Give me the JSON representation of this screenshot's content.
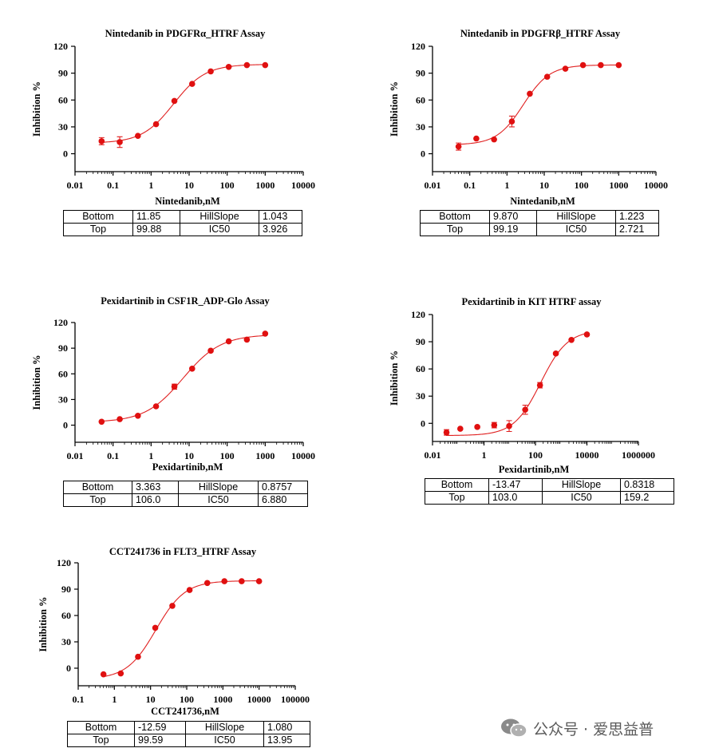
{
  "watermark": {
    "text": "公众号 · 爱思益普",
    "icon": "wechat-icon"
  },
  "colors": {
    "curve": "#e02020",
    "point": "#e01010",
    "axis": "#000000"
  },
  "chart_data": [
    {
      "type": "scatter",
      "title": "Nintedanib in PDGFRα_HTRF Assay",
      "xlabel": "Nintedanib,nM",
      "ylabel": "Inhibition %",
      "xscale": "log",
      "xlim": [
        0.01,
        10000
      ],
      "xticks": [
        "0.01",
        "0.1",
        "1",
        "10",
        "100",
        "1000",
        "10000"
      ],
      "ylim": [
        -20,
        120
      ],
      "yticks": [
        0,
        30,
        60,
        90,
        120
      ],
      "grid": false,
      "points": [
        {
          "x": 0.05,
          "y": 14,
          "err": 4
        },
        {
          "x": 0.15,
          "y": 13,
          "err": 6
        },
        {
          "x": 0.45,
          "y": 20,
          "err": 0
        },
        {
          "x": 1.35,
          "y": 33,
          "err": 0
        },
        {
          "x": 4.1,
          "y": 59,
          "err": 0
        },
        {
          "x": 12,
          "y": 78,
          "err": 0
        },
        {
          "x": 37,
          "y": 92,
          "err": 0
        },
        {
          "x": 110,
          "y": 97,
          "err": 0
        },
        {
          "x": 330,
          "y": 99,
          "err": 0
        },
        {
          "x": 1000,
          "y": 99,
          "err": 0
        }
      ],
      "fit": {
        "bottom": 11.85,
        "top": 99.88,
        "hillslope": 1.043,
        "ic50": 3.926
      },
      "params": [
        {
          "n1": "Bottom",
          "v1": "11.85",
          "n2": "HillSlope",
          "v2": "1.043"
        },
        {
          "n1": "Top",
          "v1": "99.88",
          "n2": "IC50",
          "v2": "3.926"
        }
      ]
    },
    {
      "type": "scatter",
      "title": "Nintedanib in PDGFRβ_HTRF Assay",
      "xlabel": "Nintedanib,nM",
      "ylabel": "Inhibition %",
      "xscale": "log",
      "xlim": [
        0.01,
        10000
      ],
      "xticks": [
        "0.01",
        "0.1",
        "1",
        "10",
        "100",
        "1000",
        "10000"
      ],
      "ylim": [
        -20,
        120
      ],
      "yticks": [
        0,
        30,
        60,
        90,
        120
      ],
      "grid": false,
      "points": [
        {
          "x": 0.05,
          "y": 8,
          "err": 4
        },
        {
          "x": 0.15,
          "y": 17,
          "err": 0
        },
        {
          "x": 0.45,
          "y": 16,
          "err": 0
        },
        {
          "x": 1.35,
          "y": 36,
          "err": 6
        },
        {
          "x": 4.1,
          "y": 67,
          "err": 0
        },
        {
          "x": 12,
          "y": 86,
          "err": 0
        },
        {
          "x": 37,
          "y": 95,
          "err": 0
        },
        {
          "x": 110,
          "y": 99,
          "err": 0
        },
        {
          "x": 330,
          "y": 99,
          "err": 0
        },
        {
          "x": 1000,
          "y": 99,
          "err": 0
        }
      ],
      "fit": {
        "bottom": 9.87,
        "top": 99.19,
        "hillslope": 1.223,
        "ic50": 2.721
      },
      "params": [
        {
          "n1": "Bottom",
          "v1": "9.870",
          "n2": "HillSlope",
          "v2": "1.223"
        },
        {
          "n1": "Top",
          "v1": "99.19",
          "n2": "IC50",
          "v2": "2.721"
        }
      ]
    },
    {
      "type": "scatter",
      "title": "Pexidartinib in CSF1R_ADP-Glo Assay",
      "xlabel": "Pexidartinib,nM",
      "ylabel": "Inhibition %",
      "xscale": "log",
      "xlim": [
        0.01,
        10000
      ],
      "xticks": [
        "0.01",
        "0.1",
        "1",
        "10",
        "100",
        "1000",
        "10000"
      ],
      "ylim": [
        -20,
        120
      ],
      "yticks": [
        0,
        30,
        60,
        90,
        120
      ],
      "grid": false,
      "points": [
        {
          "x": 0.05,
          "y": 4,
          "err": 0
        },
        {
          "x": 0.15,
          "y": 7,
          "err": 0
        },
        {
          "x": 0.45,
          "y": 11,
          "err": 0
        },
        {
          "x": 1.35,
          "y": 22,
          "err": 0
        },
        {
          "x": 4.1,
          "y": 45,
          "err": 3
        },
        {
          "x": 12,
          "y": 66,
          "err": 0
        },
        {
          "x": 37,
          "y": 87,
          "err": 0
        },
        {
          "x": 110,
          "y": 98,
          "err": 0
        },
        {
          "x": 330,
          "y": 100,
          "err": 0
        },
        {
          "x": 1000,
          "y": 107,
          "err": 0
        }
      ],
      "fit": {
        "bottom": 3.363,
        "top": 106.0,
        "hillslope": 0.8757,
        "ic50": 6.88
      },
      "params": [
        {
          "n1": "Bottom",
          "v1": "3.363",
          "n2": "HillSlope",
          "v2": "0.8757"
        },
        {
          "n1": "Top",
          "v1": "106.0",
          "n2": "IC50",
          "v2": "6.880"
        }
      ]
    },
    {
      "type": "scatter",
      "title": "Pexidartinib in KIT HTRF assay",
      "xlabel": "Pexidartinib,nM",
      "ylabel": "Inhibition %",
      "xscale": "log",
      "xlim": [
        0.01,
        1000000
      ],
      "xticks": [
        "0.01",
        "1",
        "100",
        "10000",
        "1000000"
      ],
      "xtickvals": [
        0.01,
        1,
        100,
        10000,
        1000000
      ],
      "ylim": [
        -20,
        120
      ],
      "yticks": [
        0,
        30,
        60,
        90,
        120
      ],
      "grid": false,
      "points": [
        {
          "x": 0.035,
          "y": -10,
          "err": 3
        },
        {
          "x": 0.12,
          "y": -6,
          "err": 0
        },
        {
          "x": 0.55,
          "y": -4,
          "err": 0
        },
        {
          "x": 2.5,
          "y": -2,
          "err": 3
        },
        {
          "x": 9.5,
          "y": -3,
          "err": 6
        },
        {
          "x": 40,
          "y": 15,
          "err": 5
        },
        {
          "x": 150,
          "y": 42,
          "err": 3
        },
        {
          "x": 620,
          "y": 77,
          "err": 0
        },
        {
          "x": 2500,
          "y": 92,
          "err": 0
        },
        {
          "x": 10000,
          "y": 98,
          "err": 0
        }
      ],
      "fit": {
        "bottom": -13.47,
        "top": 103.0,
        "hillslope": 0.8318,
        "ic50": 159.2
      },
      "params": [
        {
          "n1": "Bottom",
          "v1": "-13.47",
          "n2": "HillSlope",
          "v2": "0.8318"
        },
        {
          "n1": "Top",
          "v1": "103.0",
          "n2": "IC50",
          "v2": "159.2"
        }
      ]
    },
    {
      "type": "scatter",
      "title": "CCT241736 in FLT3_HTRF Assay",
      "xlabel": "CCT241736,nM",
      "ylabel": "Inhibition %",
      "xscale": "log",
      "xlim": [
        0.1,
        100000
      ],
      "xticks": [
        "0.1",
        "1",
        "10",
        "100",
        "1000",
        "10000",
        "100000"
      ],
      "ylim": [
        -20,
        120
      ],
      "yticks": [
        0,
        30,
        60,
        90,
        120
      ],
      "grid": false,
      "points": [
        {
          "x": 0.5,
          "y": -7,
          "err": 0
        },
        {
          "x": 1.5,
          "y": -6,
          "err": 0
        },
        {
          "x": 4.5,
          "y": 13,
          "err": 0
        },
        {
          "x": 13.5,
          "y": 46,
          "err": 0
        },
        {
          "x": 40,
          "y": 71,
          "err": 0
        },
        {
          "x": 120,
          "y": 89,
          "err": 0
        },
        {
          "x": 370,
          "y": 97,
          "err": 0
        },
        {
          "x": 1100,
          "y": 99,
          "err": 0
        },
        {
          "x": 3300,
          "y": 99,
          "err": 0
        },
        {
          "x": 10000,
          "y": 99,
          "err": 0
        }
      ],
      "fit": {
        "bottom": -12.59,
        "top": 99.59,
        "hillslope": 1.08,
        "ic50": 13.95
      },
      "params": [
        {
          "n1": "Bottom",
          "v1": "-12.59",
          "n2": "HillSlope",
          "v2": "1.080"
        },
        {
          "n1": "Top",
          "v1": "99.59",
          "n2": "IC50",
          "v2": "13.95"
        }
      ]
    }
  ]
}
